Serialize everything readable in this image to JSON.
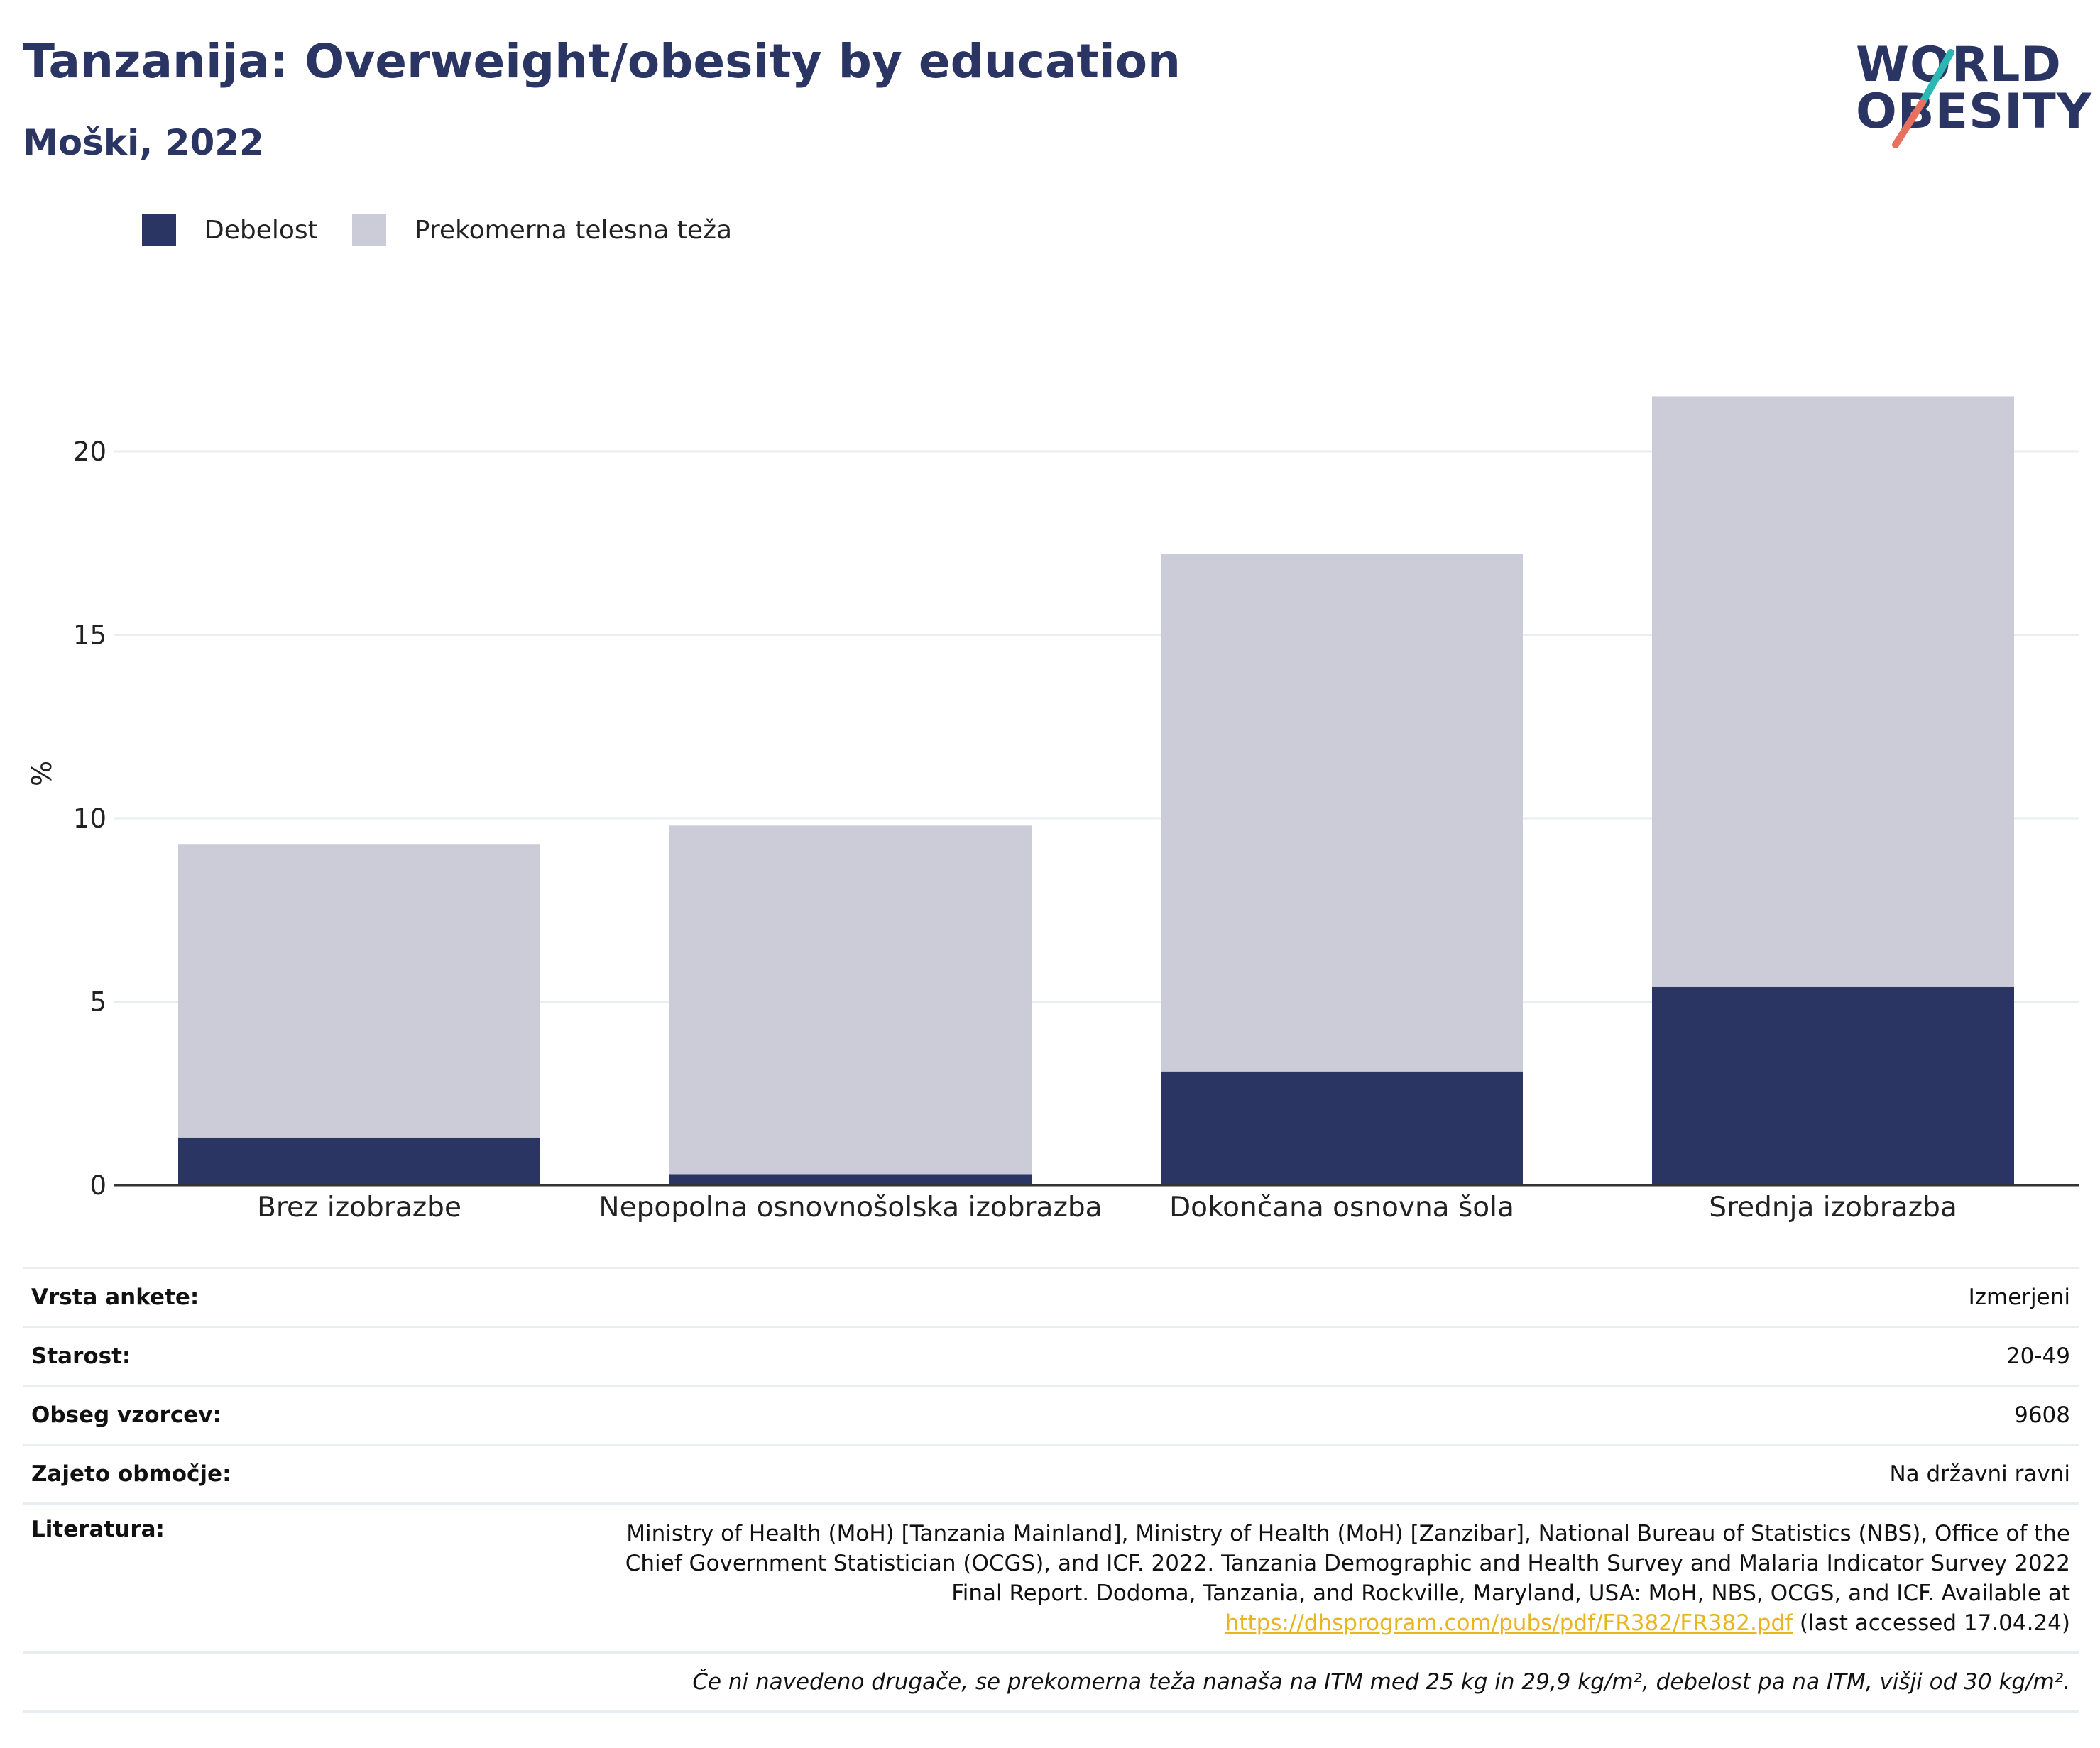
{
  "header": {
    "title": "Tanzanija: Overweight/obesity by education",
    "subtitle": "Moški, 2022"
  },
  "logo": {
    "line1": "WORLD",
    "line2": "OBESITY",
    "colors": {
      "text": "#2a3563",
      "accent_teal": "#2bb7b3",
      "accent_coral": "#e8705f"
    }
  },
  "legend": [
    {
      "label": "Debelost",
      "color": "#2a3563"
    },
    {
      "label": "Prekomerna telesna teža",
      "color": "#cbccd8"
    }
  ],
  "chart_data": {
    "type": "bar",
    "stacked": true,
    "categories": [
      "Brez izobrazbe",
      "Nepopolna osnovnošolska izobrazba",
      "Dokončana osnovna šola",
      "Srednja izobrazba"
    ],
    "series": [
      {
        "name": "Debelost",
        "values": [
          1.3,
          0.3,
          3.1,
          5.4
        ],
        "color": "#2a3563"
      },
      {
        "name": "Prekomerna telesna teža",
        "values": [
          8.0,
          9.5,
          14.1,
          16.1
        ],
        "color": "#cbccd8"
      }
    ],
    "ylabel": "%",
    "xlabel": "",
    "ylim": [
      0,
      22
    ],
    "yticks": [
      0,
      5,
      10,
      15,
      20
    ],
    "grid": true,
    "legend_position": "top-left"
  },
  "info": {
    "rows": [
      {
        "label": "Vrsta ankete:",
        "value": "Izmerjeni"
      },
      {
        "label": "Starost:",
        "value": "20-49"
      },
      {
        "label": "Obseg vzorcev:",
        "value": "9608"
      },
      {
        "label": "Zajeto območje:",
        "value": "Na državni ravni"
      }
    ],
    "literature": {
      "label": "Literatura:",
      "line1": "Ministry of Health (MoH) [Tanzania Mainland], Ministry of Health (MoH) [Zanzibar], National Bureau of Statistics (NBS), Office of the",
      "line2": "Chief Government Statistician (OCGS), and ICF. 2022. Tanzania Demographic and Health Survey and Malaria Indicator Survey 2022",
      "line3": "Final Report. Dodoma, Tanzania, and Rockville, Maryland, USA: MoH, NBS, OCGS, and ICF. Available at",
      "link": "https://dhsprogram.com/pubs/pdf/FR382/FR382.pdf",
      "suffix": " (last accessed 17.04.24)"
    },
    "note": "Če ni navedeno drugače, se prekomerna teža nanaša na ITM med 25 kg in 29,9 kg/m², debelost pa na ITM, višji od 30 kg/m²."
  }
}
